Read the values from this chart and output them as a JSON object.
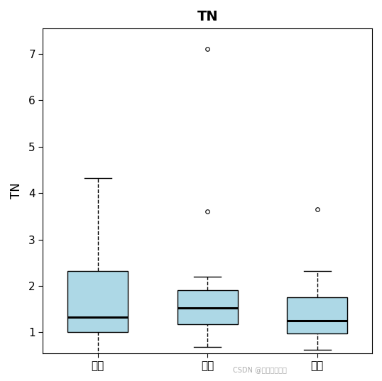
{
  "title": "TN",
  "ylabel": "TN",
  "categories": [
    "上游",
    "中游",
    "下游"
  ],
  "boxes": [
    {
      "label": "上游",
      "q1": 1.0,
      "median": 1.32,
      "q3": 2.32,
      "whisker_low": 0.48,
      "whisker_high": 4.32,
      "outliers": []
    },
    {
      "label": "中游",
      "q1": 1.18,
      "median": 1.52,
      "q3": 1.9,
      "whisker_low": 0.68,
      "whisker_high": 2.2,
      "outliers": [
        3.6,
        7.1
      ]
    },
    {
      "label": "下游",
      "q1": 0.98,
      "median": 1.25,
      "q3": 1.75,
      "whisker_low": 0.62,
      "whisker_high": 2.32,
      "outliers": [
        3.65
      ]
    }
  ],
  "ylim": [
    0.55,
    7.55
  ],
  "yticks": [
    1,
    2,
    3,
    4,
    5,
    6,
    7
  ],
  "box_facecolor": "#add8e6",
  "median_color": "black",
  "whisker_color": "black",
  "box_width": 0.55,
  "cap_ratio": 0.45,
  "title_fontsize": 14,
  "label_fontsize": 12,
  "tick_fontsize": 11,
  "watermark": "CSDN @拓数数据部落"
}
